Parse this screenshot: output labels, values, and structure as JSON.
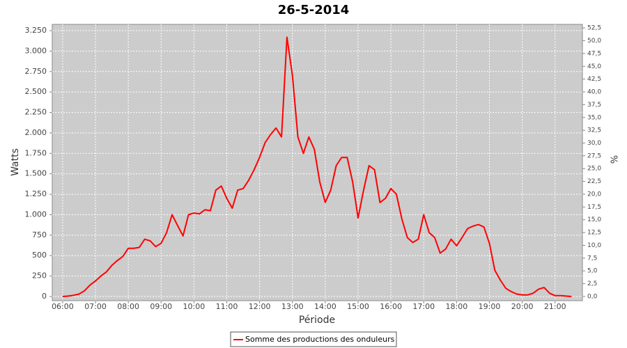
{
  "chart_data": {
    "type": "line",
    "title": "26-5-2014",
    "x_label": "Période",
    "y_label": "Watts",
    "y2_label": "%",
    "x": [
      "06:00",
      "06:10",
      "06:20",
      "06:30",
      "06:40",
      "06:50",
      "07:00",
      "07:10",
      "07:20",
      "07:30",
      "07:40",
      "07:50",
      "08:00",
      "08:10",
      "08:20",
      "08:30",
      "08:40",
      "08:50",
      "09:00",
      "09:10",
      "09:20",
      "09:30",
      "09:40",
      "09:50",
      "10:00",
      "10:10",
      "10:20",
      "10:30",
      "10:40",
      "10:50",
      "11:00",
      "11:10",
      "11:20",
      "11:30",
      "11:40",
      "11:50",
      "12:00",
      "12:10",
      "12:20",
      "12:30",
      "12:40",
      "12:50",
      "13:00",
      "13:10",
      "13:20",
      "13:30",
      "13:40",
      "13:50",
      "14:00",
      "14:10",
      "14:20",
      "14:30",
      "14:40",
      "14:50",
      "15:00",
      "15:10",
      "15:20",
      "15:30",
      "15:40",
      "15:50",
      "16:00",
      "16:10",
      "16:20",
      "16:30",
      "16:40",
      "16:50",
      "17:00",
      "17:10",
      "17:20",
      "17:30",
      "17:40",
      "17:50",
      "18:00",
      "18:10",
      "18:20",
      "18:30",
      "18:40",
      "18:50",
      "19:00",
      "19:10",
      "19:20",
      "19:30",
      "19:40",
      "19:50",
      "20:00",
      "20:10",
      "20:20",
      "20:30",
      "20:40",
      "20:50",
      "21:00",
      "21:10",
      "21:20",
      "21:30"
    ],
    "series": [
      {
        "name": "Somme des productions des onduleurs",
        "color": "#ff0000",
        "values": [
          0,
          5,
          15,
          30,
          70,
          140,
          190,
          250,
          300,
          380,
          440,
          490,
          590,
          590,
          600,
          700,
          680,
          610,
          650,
          780,
          1000,
          870,
          740,
          1000,
          1020,
          1010,
          1060,
          1050,
          1300,
          1350,
          1200,
          1080,
          1300,
          1320,
          1420,
          1550,
          1700,
          1880,
          1980,
          2060,
          1950,
          3170,
          2700,
          1950,
          1750,
          1950,
          1800,
          1400,
          1150,
          1300,
          1600,
          1700,
          1700,
          1400,
          960,
          1300,
          1600,
          1550,
          1150,
          1200,
          1320,
          1250,
          950,
          720,
          660,
          700,
          1000,
          780,
          720,
          530,
          580,
          700,
          620,
          720,
          830,
          860,
          880,
          850,
          650,
          320,
          200,
          100,
          60,
          30,
          20,
          20,
          40,
          90,
          110,
          40,
          10,
          10,
          5,
          0
        ]
      }
    ],
    "xlim": [
      "05:41",
      "21:50"
    ],
    "xticks": [
      "06:00",
      "07:00",
      "08:00",
      "09:00",
      "10:00",
      "11:00",
      "12:00",
      "13:00",
      "14:00",
      "15:00",
      "16:00",
      "17:00",
      "18:00",
      "19:00",
      "20:00",
      "21:00"
    ],
    "ylim": [
      -51,
      3327
    ],
    "yticks": [
      0,
      250,
      500,
      750,
      {
        "value": 1000,
        "label": "1.000"
      },
      {
        "value": 1250,
        "label": "1.250"
      },
      {
        "value": 1500,
        "label": "1.500"
      },
      {
        "value": 1750,
        "label": "1.750"
      },
      {
        "value": 2000,
        "label": "2.000"
      },
      {
        "value": 2250,
        "label": "2.250"
      },
      {
        "value": 2500,
        "label": "2.500"
      },
      {
        "value": 2750,
        "label": "2.750"
      },
      {
        "value": 3000,
        "label": "3.000"
      },
      {
        "value": 3250,
        "label": "3.250"
      }
    ],
    "y2lim": [
      -0.82,
      53.2
    ],
    "y2ticks": [
      {
        "value": 0,
        "label": "0,0"
      },
      {
        "value": 2.5,
        "label": "2,5"
      },
      {
        "value": 5,
        "label": "5,0"
      },
      {
        "value": 7.5,
        "label": "7,5"
      },
      {
        "value": 10,
        "label": "10,0"
      },
      {
        "value": 12.5,
        "label": "12,5"
      },
      {
        "value": 15,
        "label": "15,0"
      },
      {
        "value": 17.5,
        "label": "17,5"
      },
      {
        "value": 20,
        "label": "20,0"
      },
      {
        "value": 22.5,
        "label": "22,5"
      },
      {
        "value": 25,
        "label": "25,0"
      },
      {
        "value": 27.5,
        "label": "27,5"
      },
      {
        "value": 30,
        "label": "30,0"
      },
      {
        "value": 32.5,
        "label": "32,5"
      },
      {
        "value": 35,
        "label": "35,0"
      },
      {
        "value": 37.5,
        "label": "37,5"
      },
      {
        "value": 40,
        "label": "40,0"
      },
      {
        "value": 42.5,
        "label": "42,5"
      },
      {
        "value": 45,
        "label": "45,0"
      },
      {
        "value": 47.5,
        "label": "47,5"
      },
      {
        "value": 50,
        "label": "50,0"
      },
      {
        "value": 52.5,
        "label": "52,5"
      }
    ],
    "grid": true
  }
}
